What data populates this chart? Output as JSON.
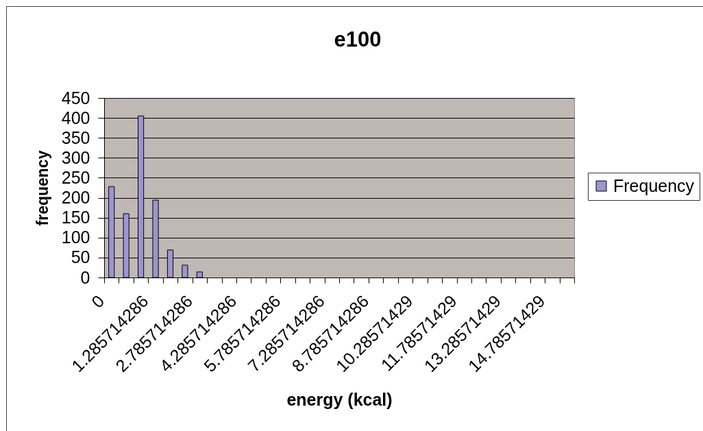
{
  "chart_data": {
    "type": "bar",
    "title": "e100",
    "xlabel": "energy (kcal)",
    "ylabel": "frequency",
    "categories": [
      "0",
      null,
      null,
      "1.285714286",
      null,
      null,
      "2.785714286",
      null,
      null,
      "4.285714286",
      null,
      null,
      "5.785714286",
      null,
      null,
      "7.285714286",
      null,
      null,
      "8.785714286",
      null,
      null,
      "10.28571429",
      null,
      null,
      "11.78571429",
      null,
      null,
      "13.28571429",
      null,
      null,
      "14.78571429",
      null
    ],
    "series": [
      {
        "name": "Frequency",
        "color": "#9a96d0",
        "values": [
          228,
          160,
          405,
          194,
          69,
          31,
          14,
          null,
          null,
          null,
          null,
          null,
          null,
          null,
          null,
          null,
          null,
          null,
          null,
          null,
          null,
          null,
          null,
          null,
          null,
          null,
          null,
          null,
          null,
          null,
          null,
          null
        ]
      }
    ],
    "ylim": [
      0,
      450
    ],
    "yticks": [
      0,
      50,
      100,
      150,
      200,
      250,
      300,
      350,
      400,
      450
    ],
    "grid": "y",
    "legend": "right"
  }
}
